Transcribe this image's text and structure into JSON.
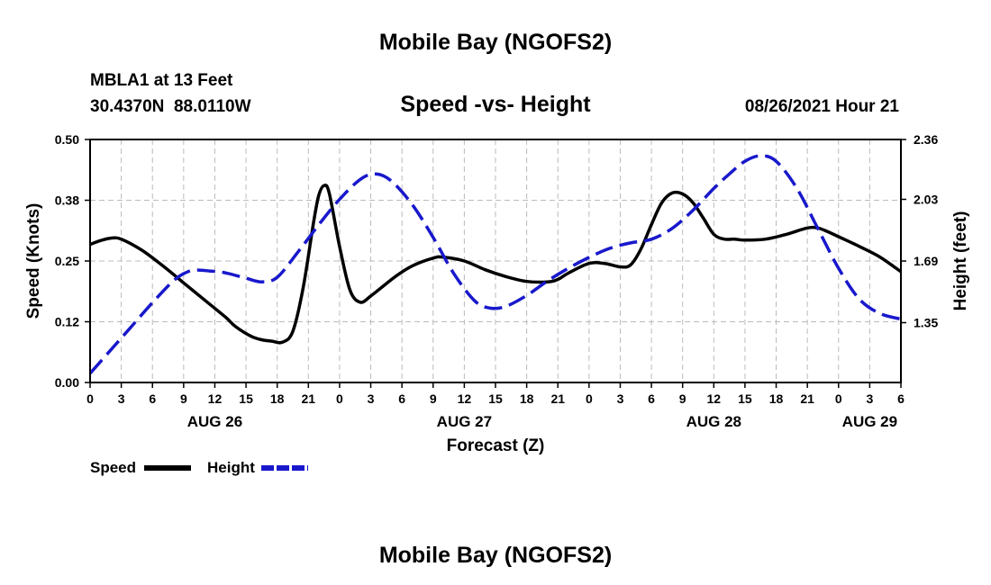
{
  "page": {
    "title_top": "Mobile Bay (NGOFS2)",
    "title_bottom": "Mobile Bay (NGOFS2)"
  },
  "station": {
    "name": "MBLA1 at 13 Feet",
    "coords": "30.4370N  88.0110W"
  },
  "chart": {
    "title": "Speed -vs- Height",
    "date": "08/26/2021 Hour 21"
  },
  "chart_data": {
    "type": "line",
    "title": "Speed -vs- Height",
    "xlabel": "Forecast (Z)",
    "x_hours_since_aug26_00z": [
      0,
      78
    ],
    "xtick_values": [
      0,
      3,
      6,
      9,
      12,
      15,
      18,
      21,
      24,
      27,
      30,
      33,
      36,
      39,
      42,
      45,
      48,
      51,
      54,
      57,
      60,
      63,
      66,
      69,
      72,
      75,
      78
    ],
    "xtick_labels": [
      "0",
      "3",
      "6",
      "9",
      "12",
      "15",
      "18",
      "21",
      "0",
      "3",
      "6",
      "9",
      "12",
      "15",
      "18",
      "21",
      "0",
      "3",
      "6",
      "9",
      "12",
      "15",
      "18",
      "21",
      "0",
      "3",
      "6"
    ],
    "date_labels": [
      {
        "x": 12,
        "label": "AUG 26"
      },
      {
        "x": 36,
        "label": "AUG 27"
      },
      {
        "x": 60,
        "label": "AUG 28"
      },
      {
        "x": 75,
        "label": "AUG 29"
      }
    ],
    "left_axis": {
      "label": "Speed (Knots)",
      "ylim": [
        0,
        0.5
      ],
      "tick_values": [
        0,
        0.125,
        0.25,
        0.375,
        0.5
      ],
      "tick_labels": [
        "0.00",
        "0.12",
        "0.25",
        "0.38",
        "0.50"
      ]
    },
    "right_axis": {
      "label": "Height (feet)",
      "ylim": [
        1.02,
        2.36
      ],
      "tick_values": [
        1.35,
        1.69,
        2.03,
        2.36
      ],
      "tick_labels": [
        "1.35",
        "1.69",
        "2.03",
        "2.36"
      ]
    },
    "grid": true,
    "series": [
      {
        "name": "Speed",
        "axis": "left",
        "color": "#000000",
        "style": "solid",
        "x": [
          0,
          1,
          2,
          3,
          5,
          7,
          9,
          11,
          13,
          14,
          15.5,
          16.5,
          17.5,
          18.5,
          19.5,
          20.5,
          21.5,
          22,
          22.5,
          23,
          24,
          25,
          26,
          27,
          28,
          29.5,
          31,
          33,
          34,
          36,
          38,
          40,
          42,
          44,
          45,
          46,
          48,
          49.5,
          51,
          52,
          53,
          54,
          55,
          56,
          57,
          58,
          59,
          60,
          61,
          62,
          63,
          65,
          67,
          69,
          70,
          71,
          72,
          74,
          76,
          78
        ],
        "y": [
          0.284,
          0.292,
          0.297,
          0.295,
          0.272,
          0.24,
          0.205,
          0.17,
          0.135,
          0.115,
          0.095,
          0.088,
          0.085,
          0.083,
          0.105,
          0.195,
          0.33,
          0.385,
          0.405,
          0.39,
          0.28,
          0.19,
          0.165,
          0.178,
          0.195,
          0.22,
          0.24,
          0.256,
          0.258,
          0.25,
          0.232,
          0.218,
          0.208,
          0.207,
          0.212,
          0.225,
          0.245,
          0.245,
          0.238,
          0.242,
          0.275,
          0.325,
          0.37,
          0.39,
          0.388,
          0.37,
          0.338,
          0.305,
          0.295,
          0.295,
          0.293,
          0.295,
          0.305,
          0.318,
          0.318,
          0.31,
          0.3,
          0.28,
          0.258,
          0.228
        ]
      },
      {
        "name": "Height",
        "axis": "right",
        "color": "#1818cc",
        "style": "dashed",
        "x": [
          0,
          2,
          4,
          6,
          8,
          9,
          10,
          11.5,
          13,
          15,
          16.5,
          18,
          20,
          22,
          24,
          26,
          27.5,
          29,
          31,
          33,
          35,
          37,
          38.5,
          40,
          42,
          44,
          46,
          48,
          50,
          52,
          54,
          56,
          58,
          60,
          61.5,
          63,
          64.5,
          66,
          68,
          70,
          72,
          74,
          76,
          78
        ],
        "y": [
          1.07,
          1.2,
          1.33,
          1.46,
          1.58,
          1.62,
          1.64,
          1.635,
          1.625,
          1.595,
          1.575,
          1.6,
          1.74,
          1.89,
          2.03,
          2.14,
          2.17,
          2.13,
          2.0,
          1.82,
          1.62,
          1.47,
          1.43,
          1.44,
          1.5,
          1.58,
          1.65,
          1.71,
          1.76,
          1.79,
          1.81,
          1.87,
          1.97,
          2.09,
          2.17,
          2.24,
          2.27,
          2.24,
          2.09,
          1.87,
          1.65,
          1.48,
          1.4,
          1.37
        ]
      }
    ]
  },
  "legend": {
    "speed_label": "Speed",
    "height_label": "Height"
  },
  "colors": {
    "speed": "#000000",
    "height": "#1818cc",
    "grid": "#bbbbbb"
  }
}
